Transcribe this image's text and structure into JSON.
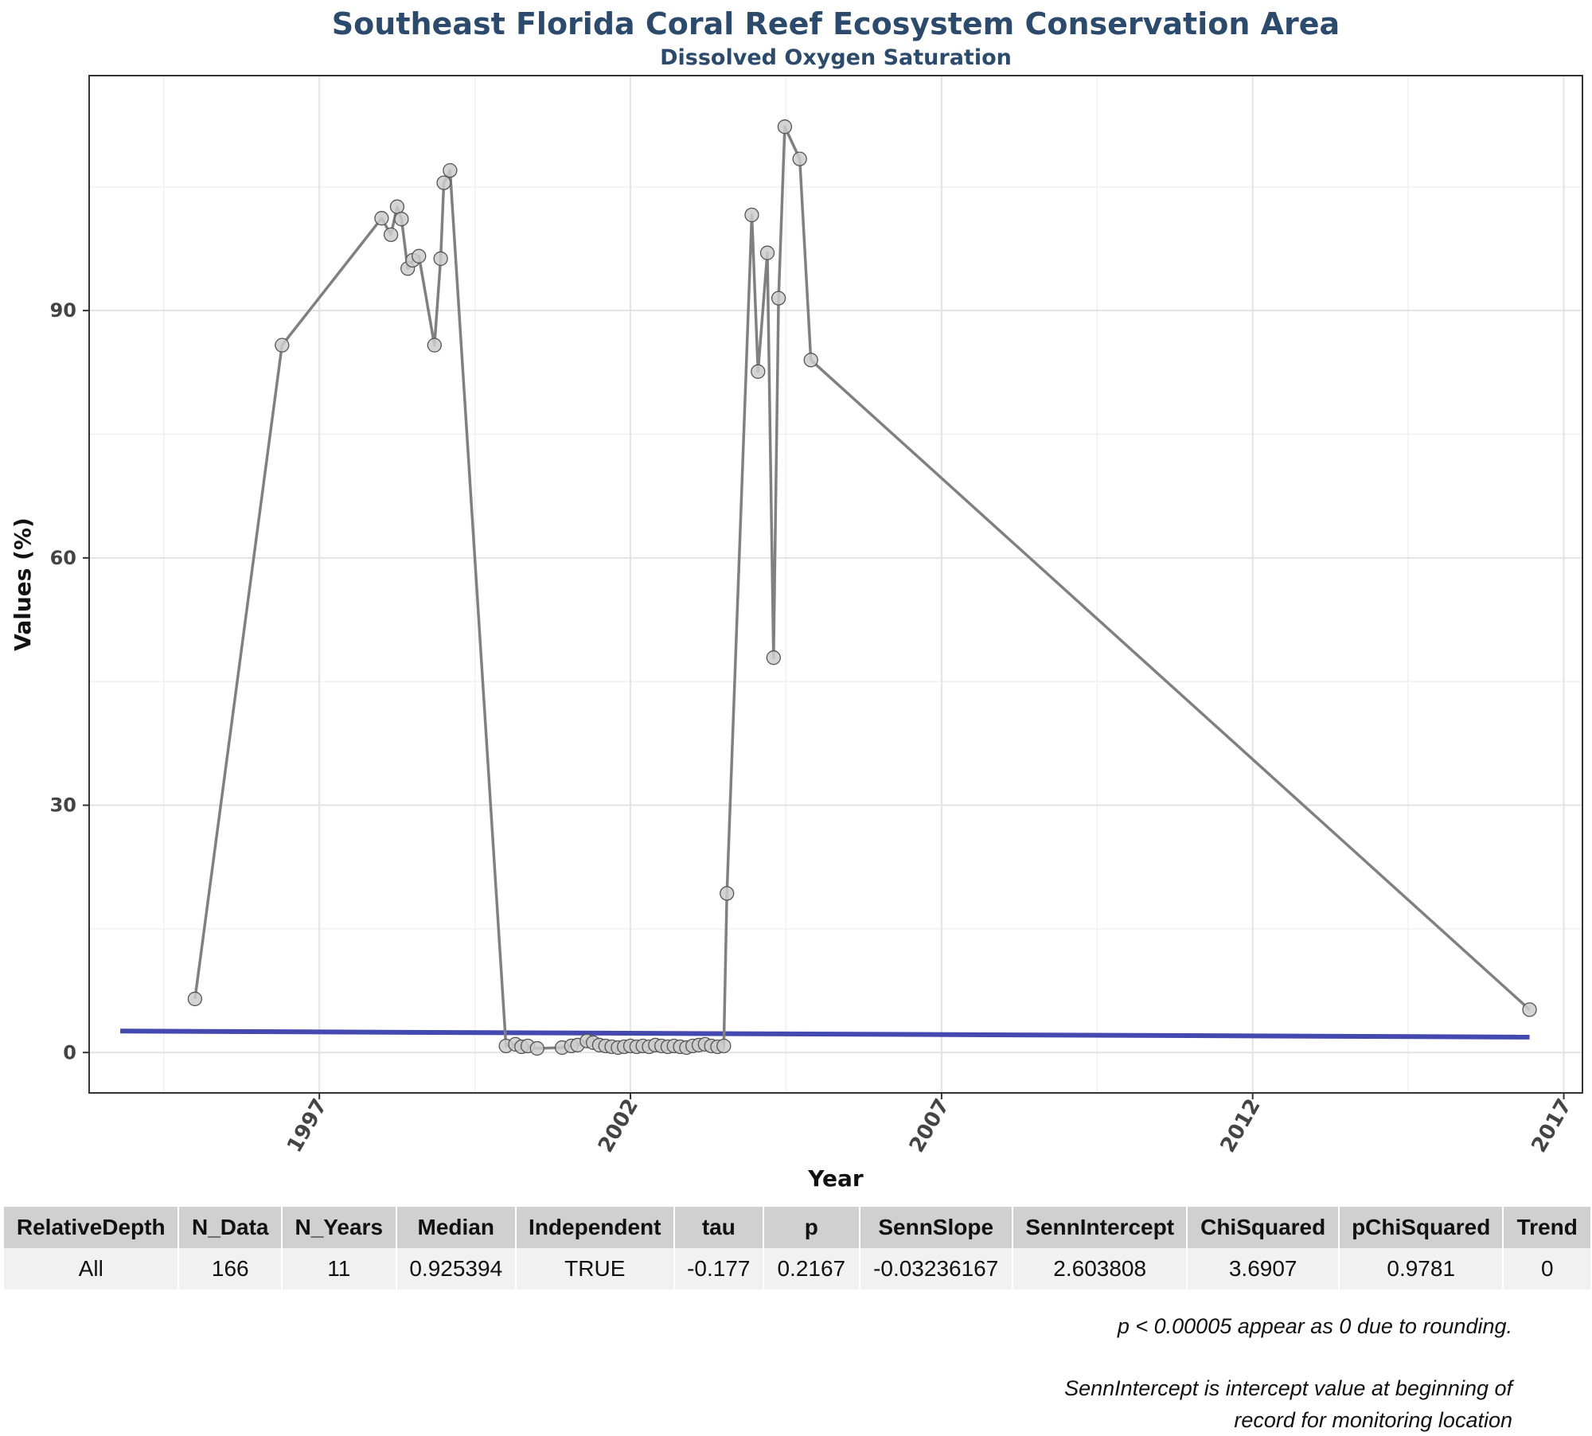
{
  "chart_data": {
    "type": "line",
    "title": "Southeast Florida Coral Reef Ecosystem Conservation Area",
    "subtitle": "Dissolved Oxygen Saturation",
    "xlabel": "Year",
    "ylabel": "Values (%)",
    "xlim": [
      1993.3,
      2017.3
    ],
    "ylim": [
      -4.9,
      118.5
    ],
    "x_ticks": [
      1997,
      2002,
      2007,
      2012,
      2017
    ],
    "y_ticks": [
      0,
      30,
      60,
      90
    ],
    "grid": true,
    "legend": "none",
    "colors": {
      "series_line": "#808080",
      "point_fill": "#cccccc",
      "point_stroke": "#555555",
      "trend_line": "#4449b0"
    },
    "series": [
      {
        "x": [
          1995.0,
          1996.4,
          1998.0,
          1998.15,
          1998.25,
          1998.32,
          1998.42,
          1998.5,
          1998.6,
          1998.85,
          1998.95,
          1999.0,
          1999.1,
          2000.0,
          2000.15,
          2000.25,
          2000.35,
          2000.5,
          2000.9,
          2001.05,
          2001.15,
          2001.3,
          2001.4,
          2001.5,
          2001.6,
          2001.7,
          2001.8,
          2001.9,
          2002.0,
          2002.1,
          2002.2,
          2002.3,
          2002.4,
          2002.5,
          2002.6,
          2002.7,
          2002.8,
          2002.9,
          2003.0,
          2003.1,
          2003.2,
          2003.3,
          2003.4,
          2003.5,
          2003.55,
          2003.95,
          2004.05,
          2004.2,
          2004.3,
          2004.38,
          2004.48,
          2004.72,
          2004.9,
          2016.45
        ],
        "y": [
          6.5,
          85.8,
          101.2,
          99.2,
          102.6,
          101.1,
          95.1,
          96.1,
          96.6,
          85.8,
          96.3,
          105.5,
          107.0,
          0.8,
          1.0,
          0.7,
          0.8,
          0.5,
          0.6,
          0.8,
          0.9,
          1.4,
          1.2,
          0.9,
          0.8,
          0.7,
          0.6,
          0.7,
          0.8,
          0.7,
          0.8,
          0.7,
          0.9,
          0.8,
          0.7,
          0.8,
          0.7,
          0.6,
          0.8,
          0.9,
          1.0,
          0.8,
          0.7,
          0.8,
          19.3,
          101.6,
          82.6,
          97.0,
          47.9,
          91.5,
          112.3,
          108.4,
          84.0,
          5.2
        ]
      }
    ],
    "trend_line": {
      "x": [
        1993.8,
        2016.45
      ],
      "y": [
        2.604,
        1.87
      ]
    }
  },
  "table": {
    "headers": [
      "RelativeDepth",
      "N_Data",
      "N_Years",
      "Median",
      "Independent",
      "tau",
      "p",
      "SennSlope",
      "SennIntercept",
      "ChiSquared",
      "pChiSquared",
      "Trend"
    ],
    "rows": [
      [
        "All",
        "166",
        "11",
        "0.925394",
        "TRUE",
        "-0.177",
        "0.2167",
        "-0.03236167",
        "2.603808",
        "3.6907",
        "0.9781",
        "0"
      ]
    ]
  },
  "notes": {
    "rounding": "p < 0.00005 appear as 0 due to rounding.",
    "intercept_line1": "SennIntercept is intercept value at beginning of",
    "intercept_line2": "record for monitoring location"
  }
}
